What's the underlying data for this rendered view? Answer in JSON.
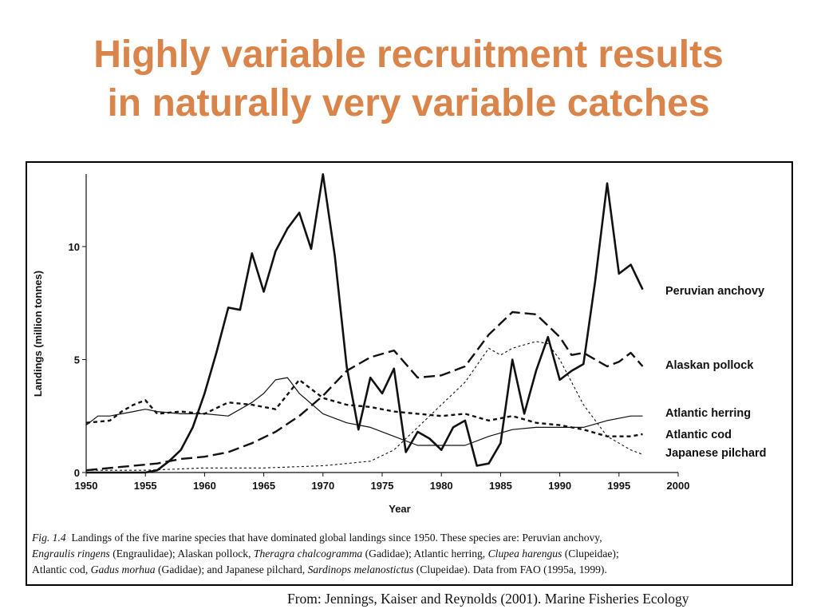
{
  "slide": {
    "title_line1": "Highly variable recruitment results",
    "title_line2": "in naturally very variable catches",
    "credit": "From: Jennings, Kaiser and Reynolds (2001). Marine Fisheries Ecology"
  },
  "colors": {
    "title": "#d9844a",
    "ink": "#111111",
    "background": "#ffffff"
  },
  "caption": {
    "fig_label": "Fig. 1.4",
    "line1_text": "Landings of the five marine species that have dominated global landings since 1950. These species are: Peruvian anchovy,",
    "line2_sci1": "Engraulis ringens",
    "line2_txt1": " (Engraulidae); Alaskan pollock, ",
    "line2_sci2": "Theragra chalcogramma",
    "line2_txt2": " (Gadidae); Atlantic herring, ",
    "line2_sci3": "Clupea harengus",
    "line2_txt3": " (Clupeidae);",
    "line3_txt1": "Atlantic cod, ",
    "line3_sci1": "Gadus morhua",
    "line3_txt2": " (Gadidae); and Japanese pilchard, ",
    "line3_sci2": "Sardinops melanostictus",
    "line3_txt3": " (Clupeidae). Data from FAO (1995a, 1999)."
  },
  "chart_data": {
    "type": "line",
    "title": "",
    "xlabel": "Year",
    "ylabel": "Landings (million tonnes)",
    "xlim": [
      1950,
      2000
    ],
    "ylim": [
      0,
      13
    ],
    "xticks": [
      1950,
      1955,
      1960,
      1965,
      1970,
      1975,
      1980,
      1985,
      1990,
      1995,
      2000
    ],
    "yticks": [
      0,
      5,
      10
    ],
    "grid": false,
    "legend": "right, labels at line ends",
    "series": [
      {
        "name": "Peruvian anchovy",
        "style": "solid-thick",
        "x": [
          1950,
          1951,
          1952,
          1953,
          1954,
          1955,
          1956,
          1957,
          1958,
          1959,
          1960,
          1961,
          1962,
          1963,
          1964,
          1965,
          1966,
          1967,
          1968,
          1969,
          1970,
          1971,
          1972,
          1973,
          1974,
          1975,
          1976,
          1977,
          1978,
          1979,
          1980,
          1981,
          1982,
          1983,
          1984,
          1985,
          1986,
          1987,
          1988,
          1989,
          1990,
          1991,
          1992,
          1993,
          1994,
          1995,
          1996,
          1997
        ],
        "y": [
          0,
          0,
          0,
          0,
          0,
          0,
          0.1,
          0.5,
          1.0,
          2.0,
          3.5,
          5.3,
          7.3,
          7.2,
          9.7,
          8.0,
          9.8,
          10.8,
          11.5,
          9.9,
          13.2,
          9.6,
          4.7,
          1.9,
          4.2,
          3.5,
          4.6,
          0.9,
          1.8,
          1.5,
          1.0,
          2.0,
          2.3,
          0.3,
          0.4,
          1.3,
          5.0,
          2.6,
          4.5,
          6.0,
          4.1,
          4.5,
          4.8,
          8.5,
          12.8,
          8.8,
          9.2,
          8.1
        ]
      },
      {
        "name": "Alaskan pollock",
        "style": "long-dash",
        "x": [
          1950,
          1952,
          1954,
          1956,
          1958,
          1960,
          1962,
          1964,
          1966,
          1968,
          1970,
          1972,
          1974,
          1976,
          1978,
          1980,
          1982,
          1984,
          1986,
          1988,
          1990,
          1991,
          1992,
          1993,
          1994,
          1995,
          1996,
          1997
        ],
        "y": [
          0.1,
          0.2,
          0.3,
          0.4,
          0.6,
          0.7,
          0.9,
          1.3,
          1.8,
          2.5,
          3.4,
          4.5,
          5.1,
          5.4,
          4.2,
          4.3,
          4.7,
          6.1,
          7.1,
          7.0,
          6.0,
          5.2,
          5.3,
          5.0,
          4.7,
          4.9,
          5.3,
          4.7
        ]
      },
      {
        "name": "Atlantic herring",
        "style": "short-dash",
        "x": [
          1950,
          1952,
          1953,
          1954,
          1955,
          1956,
          1958,
          1960,
          1962,
          1964,
          1966,
          1968,
          1970,
          1972,
          1974,
          1976,
          1978,
          1980,
          1982,
          1984,
          1986,
          1988,
          1990,
          1992,
          1994,
          1996,
          1997
        ],
        "y": [
          2.2,
          2.3,
          2.7,
          3.0,
          3.2,
          2.6,
          2.7,
          2.6,
          3.1,
          3.0,
          2.8,
          4.1,
          3.3,
          3.0,
          2.9,
          2.7,
          2.6,
          2.5,
          2.6,
          2.3,
          2.5,
          2.2,
          2.1,
          1.9,
          1.6,
          1.6,
          1.7
        ]
      },
      {
        "name": "Atlantic cod",
        "style": "solid-thin",
        "x": [
          1950,
          1951,
          1952,
          1953,
          1954,
          1955,
          1956,
          1958,
          1960,
          1962,
          1964,
          1965,
          1966,
          1967,
          1968,
          1970,
          1972,
          1974,
          1976,
          1978,
          1980,
          1982,
          1984,
          1986,
          1988,
          1990,
          1992,
          1994,
          1996,
          1997
        ],
        "y": [
          2.1,
          2.5,
          2.5,
          2.6,
          2.7,
          2.8,
          2.7,
          2.6,
          2.6,
          2.5,
          3.1,
          3.5,
          4.1,
          4.2,
          3.5,
          2.6,
          2.2,
          2.0,
          1.6,
          1.2,
          1.2,
          1.2,
          1.6,
          1.9,
          2.0,
          2.0,
          2.0,
          2.3,
          2.5,
          2.5
        ]
      },
      {
        "name": "Japanese pilchard",
        "style": "dotted-thin",
        "x": [
          1950,
          1955,
          1960,
          1965,
          1970,
          1972,
          1974,
          1976,
          1978,
          1980,
          1982,
          1984,
          1985,
          1986,
          1988,
          1989,
          1990,
          1992,
          1994,
          1996,
          1997
        ],
        "y": [
          0.1,
          0.1,
          0.2,
          0.2,
          0.3,
          0.4,
          0.5,
          1.0,
          2.0,
          3.0,
          4.0,
          5.5,
          5.2,
          5.5,
          5.8,
          5.7,
          5.0,
          3.0,
          1.6,
          1.0,
          0.8
        ]
      }
    ]
  }
}
